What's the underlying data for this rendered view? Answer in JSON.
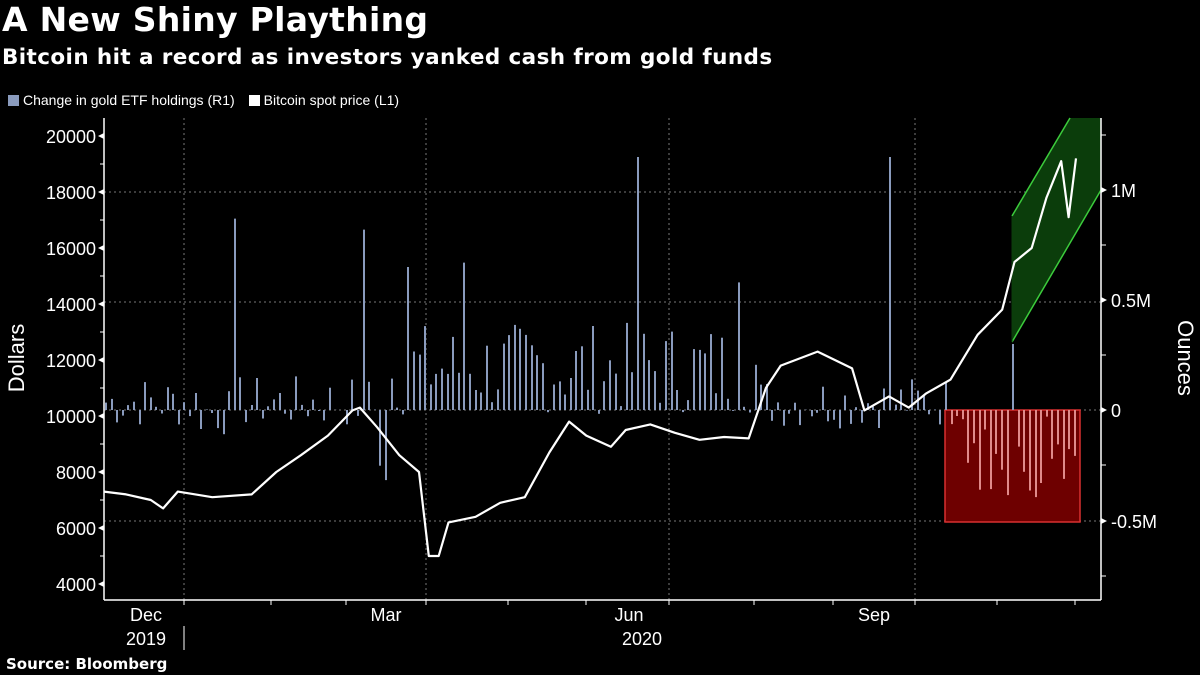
{
  "header": {
    "title": "A New Shiny Plaything",
    "subtitle": "Bitcoin hit a record as investors yanked cash from gold funds"
  },
  "legend": [
    {
      "label": "Change in gold ETF holdings (R1)",
      "color": "#8a9bbd"
    },
    {
      "label": "Bitcoin spot price (L1)",
      "color": "#ffffff"
    }
  ],
  "source": "Source: Bloomberg",
  "axes": {
    "left_title": "Dollars",
    "right_title": "Ounces",
    "left_ticks": [
      "20000",
      "18000",
      "16000",
      "14000",
      "12000",
      "10000",
      "8000",
      "6000",
      "4000"
    ],
    "right_ticks": [
      "1M",
      "0.5M",
      "0",
      "-0.5M"
    ],
    "x_months": [
      "Dec",
      "Mar",
      "Jun",
      "Sep"
    ],
    "x_years": [
      "2019",
      "2020"
    ]
  },
  "annotations": {
    "green_band_color": "#0f5a0f",
    "green_edge_color": "#3ccc3c",
    "red_box_color": "#7a0000",
    "red_edge_color": "#d83030"
  },
  "chart_data": {
    "type": "bar+line",
    "title": "A New Shiny Plaything",
    "subtitle": "Bitcoin hit a record as investors yanked cash from gold funds",
    "xlabel": "",
    "x_range": [
      "Nov 2019",
      "Nov 2020"
    ],
    "x_ticks": [
      "Dec 2019",
      "Mar",
      "Jun 2020",
      "Sep"
    ],
    "series": [
      {
        "name": "Bitcoin spot price (L1)",
        "type": "line",
        "axis": "left",
        "ylabel": "Dollars",
        "ylim": [
          3500,
          21000
        ],
        "points": [
          [
            "2019-11-01",
            7300
          ],
          [
            "2019-11-10",
            7200
          ],
          [
            "2019-11-20",
            7000
          ],
          [
            "2019-11-25",
            6700
          ],
          [
            "2019-12-01",
            7300
          ],
          [
            "2019-12-15",
            7100
          ],
          [
            "2019-12-31",
            7200
          ],
          [
            "2020-01-10",
            8000
          ],
          [
            "2020-01-20",
            8600
          ],
          [
            "2020-01-31",
            9300
          ],
          [
            "2020-02-10",
            10200
          ],
          [
            "2020-02-13",
            10300
          ],
          [
            "2020-02-20",
            9600
          ],
          [
            "2020-02-29",
            8600
          ],
          [
            "2020-03-08",
            8000
          ],
          [
            "2020-03-12",
            5000
          ],
          [
            "2020-03-16",
            5000
          ],
          [
            "2020-03-20",
            6200
          ],
          [
            "2020-03-31",
            6400
          ],
          [
            "2020-04-10",
            6900
          ],
          [
            "2020-04-20",
            7100
          ],
          [
            "2020-04-30",
            8700
          ],
          [
            "2020-05-08",
            9800
          ],
          [
            "2020-05-15",
            9300
          ],
          [
            "2020-05-25",
            8900
          ],
          [
            "2020-05-31",
            9500
          ],
          [
            "2020-06-10",
            9700
          ],
          [
            "2020-06-20",
            9400
          ],
          [
            "2020-06-30",
            9150
          ],
          [
            "2020-07-10",
            9250
          ],
          [
            "2020-07-20",
            9200
          ],
          [
            "2020-07-27",
            11000
          ],
          [
            "2020-08-02",
            11800
          ],
          [
            "2020-08-17",
            12300
          ],
          [
            "2020-08-31",
            11700
          ],
          [
            "2020-09-05",
            10200
          ],
          [
            "2020-09-15",
            10700
          ],
          [
            "2020-09-23",
            10300
          ],
          [
            "2020-09-30",
            10800
          ],
          [
            "2020-10-10",
            11300
          ],
          [
            "2020-10-21",
            12900
          ],
          [
            "2020-10-31",
            13800
          ],
          [
            "2020-11-05",
            15500
          ],
          [
            "2020-11-12",
            16000
          ],
          [
            "2020-11-18",
            17800
          ],
          [
            "2020-11-24",
            19100
          ],
          [
            "2020-11-27",
            17100
          ],
          [
            "2020-11-30",
            19200
          ]
        ]
      },
      {
        "name": "Change in gold ETF holdings (R1)",
        "type": "bar",
        "axis": "right",
        "ylabel": "Ounces",
        "ylim": [
          -750000,
          1300000
        ],
        "note": "Daily changes; approx. range -510K to +1.15M; notable peaks ~+870K (Dec), ~+1.15M (Sep), ~+860K (Jun); outflows concentrated Oct–Nov 2020 (down to ~-500K)"
      }
    ],
    "annotations": [
      {
        "type": "parallelogram",
        "color": "green",
        "desc": "Bitcoin rally channel, Oct–Nov 2020"
      },
      {
        "type": "rect",
        "color": "red",
        "desc": "Gold ETF outflows, Oct–Nov 2020, 0 to -0.5M"
      }
    ],
    "grid": true,
    "legend_position": "top-left"
  }
}
